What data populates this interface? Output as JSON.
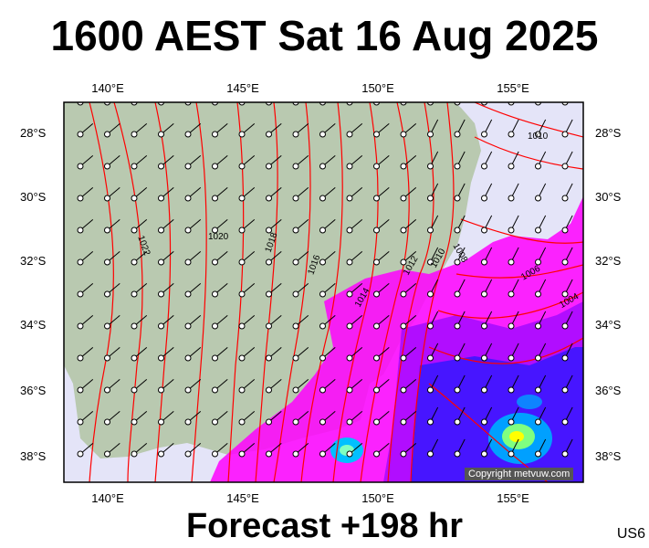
{
  "title": "1600 AEST Sat 16 Aug 2025",
  "footer": "Forecast +198 hr",
  "station_code": "US6",
  "copyright": "Copyright metvuw.com",
  "lon_labels": [
    "140°E",
    "145°E",
    "150°E",
    "155°E"
  ],
  "lat_labels": [
    "28°S",
    "30°S",
    "32°S",
    "34°S",
    "36°S",
    "38°S"
  ],
  "isobar_labels": [
    "1010",
    "1020",
    "1022",
    "1018",
    "1016",
    "1014",
    "1012",
    "1010",
    "1008",
    "1006",
    "1004"
  ],
  "colors": {
    "land": "#b9c9b0",
    "sea": "#e4e4f8",
    "isobar": "#ff0000",
    "precip_light": "#ff00ff",
    "precip_mid": "#0000ff",
    "precip_heavy": "#ffff00"
  }
}
